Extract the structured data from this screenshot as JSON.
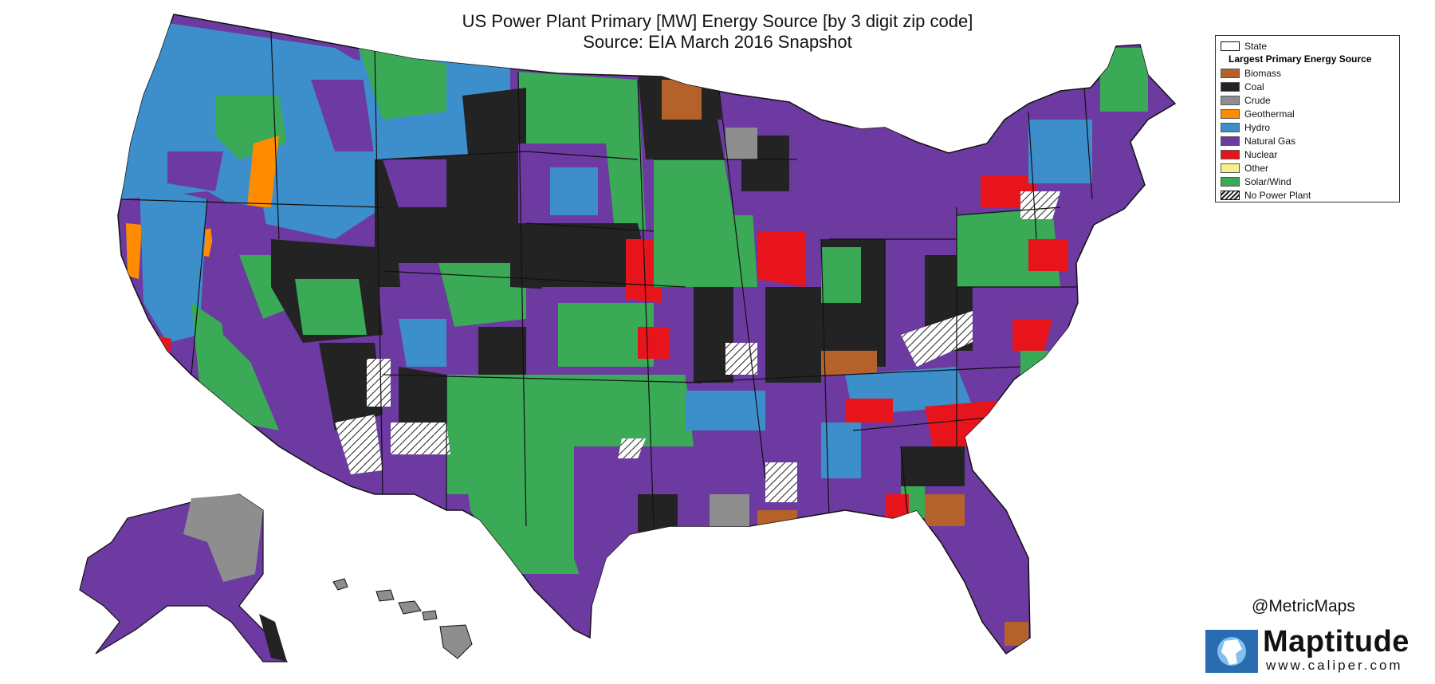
{
  "title": {
    "line1": "US Power Plant Primary [MW] Energy Source [by 3 digit zip code]",
    "line2": "Source:  EIA March 2016 Snapshot"
  },
  "legend": {
    "state_label": "State",
    "heading": "Largest Primary Energy Source",
    "items": [
      {
        "label": "Biomass",
        "color": "#b5612a"
      },
      {
        "label": "Coal",
        "color": "#232323"
      },
      {
        "label": "Crude",
        "color": "#8e8e8e"
      },
      {
        "label": "Geothermal",
        "color": "#ff8c00"
      },
      {
        "label": "Hydro",
        "color": "#3d8fcc"
      },
      {
        "label": "Natural Gas",
        "color": "#6c3aa0"
      },
      {
        "label": "Nuclear",
        "color": "#e8141c"
      },
      {
        "label": "Other",
        "color": "#f5f08c"
      },
      {
        "label": "Solar/Wind",
        "color": "#3aaa56"
      }
    ],
    "no_plant_label": "No Power Plant"
  },
  "credit": "@MetricMaps",
  "logo": {
    "wordmark": "Maptitude",
    "url": "www.caliper.com"
  },
  "map": {
    "background": "#ffffff",
    "border_color": "#111111",
    "regions": [
      {
        "id": "pacific-nw",
        "source": "Hydro"
      },
      {
        "id": "california",
        "source": "Natural Gas"
      },
      {
        "id": "nevada",
        "source": "Natural Gas"
      },
      {
        "id": "mountain-west",
        "source": "Coal"
      },
      {
        "id": "southwest",
        "source": "Natural Gas"
      },
      {
        "id": "texas",
        "source": "Solar/Wind"
      },
      {
        "id": "plains",
        "source": "Solar/Wind"
      },
      {
        "id": "midwest",
        "source": "Coal"
      },
      {
        "id": "southeast",
        "source": "Natural Gas"
      },
      {
        "id": "northeast",
        "source": "Natural Gas"
      },
      {
        "id": "alaska",
        "source": "Natural Gas"
      },
      {
        "id": "hawaii",
        "source": "Crude"
      }
    ]
  }
}
